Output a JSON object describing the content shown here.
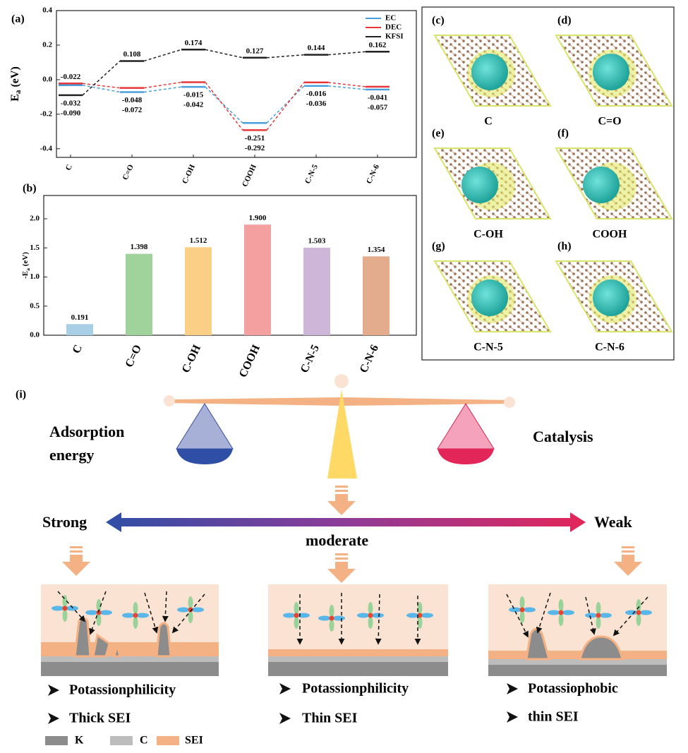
{
  "chart_data": [
    {
      "type": "level",
      "panel_label": "(a)",
      "ylabel": [
        "E",
        "a",
        " (eV)"
      ],
      "categories": [
        "C",
        "C=O",
        "C-OH",
        "COOH",
        "C-N-5",
        "C-N-6"
      ],
      "series": [
        {
          "name": "EC",
          "color": "#4a9fdc",
          "values": [
            -0.032,
            -0.072,
            -0.042,
            -0.251,
            -0.036,
            -0.057
          ],
          "value_labels": [
            "-0.032",
            "-0.072",
            "-0.042",
            "-0.251",
            "-0.036",
            "-0.057"
          ]
        },
        {
          "name": "DEC",
          "color": "#e8373a",
          "values": [
            -0.022,
            -0.048,
            -0.015,
            -0.292,
            -0.016,
            -0.041
          ],
          "value_labels": [
            "-0.022",
            "-0.048",
            "-0.015",
            "-0.292",
            "-0.016",
            "-0.041"
          ]
        },
        {
          "name": "KFSI",
          "color": "#222222",
          "values": [
            -0.09,
            0.108,
            0.174,
            0.127,
            0.144,
            0.162
          ],
          "value_labels": [
            "-0.090",
            "0.108",
            "0.174",
            "0.127",
            "0.144",
            "0.162"
          ]
        }
      ],
      "ylim": [
        -0.45,
        0.4
      ],
      "yticks": [
        -0.4,
        -0.2,
        {
          "value": 0,
          "label": "0.0"
        },
        0.2,
        0.4
      ],
      "legend": "upper right"
    },
    {
      "type": "bar",
      "panel_label": "(b)",
      "ylabel": [
        "-E",
        "a",
        " (eV)"
      ],
      "categories": [
        "C",
        "C=O",
        "C-OH",
        "COOH",
        "C-N-5",
        "C-N-6"
      ],
      "values": [
        0.191,
        1.398,
        1.512,
        1.9,
        1.503,
        1.354
      ],
      "value_labels": [
        "0.191",
        "1.398",
        "1.512",
        "1.900",
        "1.503",
        "1.354"
      ],
      "colors": [
        "#a9cfe6",
        "#9fd39b",
        "#fbcf85",
        "#f4a0a0",
        "#cdb6d8",
        "#e3ac8c"
      ],
      "ylim": [
        0,
        2.4
      ],
      "yticks": [
        {
          "value": 0,
          "label": "0.0"
        },
        0.5,
        {
          "value": 1,
          "label": "1.0"
        },
        1.5,
        {
          "value": 2,
          "label": "2.0"
        }
      ]
    }
  ],
  "structures": [
    {
      "label": "(c)",
      "caption": "C"
    },
    {
      "label": "(d)",
      "caption": "C=O"
    },
    {
      "label": "(e)",
      "caption": "C-OH"
    },
    {
      "label": "(f)",
      "caption": "COOH"
    },
    {
      "label": "(g)",
      "caption": "C-N-5"
    },
    {
      "label": "(h)",
      "caption": "C-N-6"
    }
  ],
  "scheme": {
    "label": "(i)",
    "left": [
      "Adsorption",
      "energy"
    ],
    "right": "Catalysis",
    "strong": "Strong",
    "weak": "Weak",
    "moderate": "moderate",
    "cases": [
      {
        "bullets": [
          "Potassionphilicity",
          "Thick SEI"
        ]
      },
      {
        "bullets": [
          "Potassionphilicity",
          "Thin SEI"
        ]
      },
      {
        "bullets": [
          "Potassiophobic",
          "thin SEI"
        ]
      }
    ],
    "legend": [
      "K",
      "C",
      "SEI"
    ]
  }
}
